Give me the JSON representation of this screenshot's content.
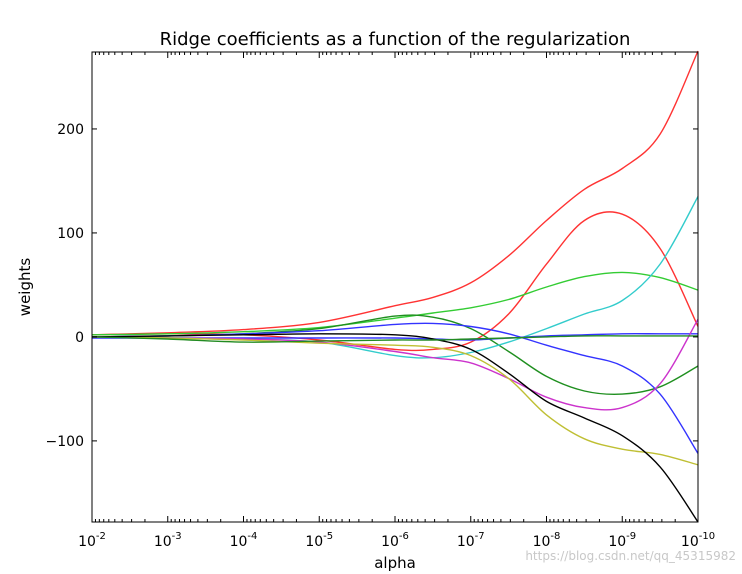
{
  "chart_data": {
    "type": "line",
    "title": "Ridge coefficients as a function of the regularization",
    "xlabel": "alpha",
    "ylabel": "weights",
    "x_scale": "log",
    "x_reversed": true,
    "xlim": [
      0.01,
      1e-10
    ],
    "ylim": [
      -178,
      274
    ],
    "grid": false,
    "legend": "none",
    "x_ticks": [
      {
        "exp": -2,
        "base": "10",
        "sup": "-2"
      },
      {
        "exp": -3,
        "base": "10",
        "sup": "-3"
      },
      {
        "exp": -4,
        "base": "10",
        "sup": "-4"
      },
      {
        "exp": -5,
        "base": "10",
        "sup": "-5"
      },
      {
        "exp": -6,
        "base": "10",
        "sup": "-6"
      },
      {
        "exp": -7,
        "base": "10",
        "sup": "-7"
      },
      {
        "exp": -8,
        "base": "10",
        "sup": "-8"
      },
      {
        "exp": -9,
        "base": "10",
        "sup": "-9"
      },
      {
        "exp": -10,
        "base": "10",
        "sup": "-10"
      }
    ],
    "y_ticks": [
      {
        "value": 200,
        "label": "200"
      },
      {
        "value": 100,
        "label": "100"
      },
      {
        "value": 0,
        "label": "0"
      },
      {
        "value": -100,
        "label": "−100"
      }
    ],
    "series": [
      {
        "color": "#ff3333",
        "points": [
          [
            -2,
            2
          ],
          [
            -3,
            4
          ],
          [
            -4,
            7
          ],
          [
            -5,
            14
          ],
          [
            -6,
            30
          ],
          [
            -6.5,
            38
          ],
          [
            -7,
            52
          ],
          [
            -7.5,
            78
          ],
          [
            -8,
            112
          ],
          [
            -8.5,
            142
          ],
          [
            -9,
            162
          ],
          [
            -9.5,
            195
          ],
          [
            -10,
            275
          ]
        ]
      },
      {
        "color": "#ff3333",
        "points": [
          [
            -2,
            2
          ],
          [
            -3,
            3
          ],
          [
            -4,
            2
          ],
          [
            -5,
            -3
          ],
          [
            -6,
            -12
          ],
          [
            -6.5,
            -12
          ],
          [
            -7,
            -5
          ],
          [
            -7.5,
            22
          ],
          [
            -8,
            70
          ],
          [
            -8.5,
            112
          ],
          [
            -9,
            118
          ],
          [
            -9.5,
            85
          ],
          [
            -10,
            10
          ]
        ]
      },
      {
        "color": "#33cc33",
        "points": [
          [
            -2,
            2
          ],
          [
            -3,
            3
          ],
          [
            -4,
            5
          ],
          [
            -5,
            9
          ],
          [
            -6,
            18
          ],
          [
            -6.5,
            23
          ],
          [
            -7,
            28
          ],
          [
            -7.5,
            36
          ],
          [
            -8,
            48
          ],
          [
            -8.5,
            58
          ],
          [
            -9,
            62
          ],
          [
            -9.5,
            57
          ],
          [
            -10,
            45
          ]
        ]
      },
      {
        "color": "#1f8f1f",
        "points": [
          [
            -2,
            0
          ],
          [
            -3,
            1
          ],
          [
            -4,
            3
          ],
          [
            -5,
            8
          ],
          [
            -6,
            20
          ],
          [
            -6.5,
            19
          ],
          [
            -7,
            8
          ],
          [
            -7.5,
            -14
          ],
          [
            -8,
            -38
          ],
          [
            -8.5,
            -52
          ],
          [
            -9,
            -55
          ],
          [
            -9.5,
            -48
          ],
          [
            -10,
            -28
          ]
        ]
      },
      {
        "color": "#33cccc",
        "points": [
          [
            -2,
            0
          ],
          [
            -3,
            -1
          ],
          [
            -4,
            -2
          ],
          [
            -5,
            -5
          ],
          [
            -6,
            -18
          ],
          [
            -6.5,
            -20
          ],
          [
            -7,
            -15
          ],
          [
            -7.5,
            -5
          ],
          [
            -8,
            8
          ],
          [
            -8.5,
            22
          ],
          [
            -9,
            35
          ],
          [
            -9.5,
            70
          ],
          [
            -10,
            135
          ]
        ]
      },
      {
        "color": "#3333ff",
        "points": [
          [
            -2,
            0
          ],
          [
            -3,
            1
          ],
          [
            -4,
            3
          ],
          [
            -5,
            6
          ],
          [
            -6,
            12
          ],
          [
            -6.5,
            13
          ],
          [
            -7,
            10
          ],
          [
            -7.5,
            3
          ],
          [
            -8,
            -8
          ],
          [
            -8.5,
            -18
          ],
          [
            -9,
            -28
          ],
          [
            -9.5,
            -55
          ],
          [
            -10,
            -112
          ]
        ]
      },
      {
        "color": "#3333ff",
        "points": [
          [
            -2,
            -1
          ],
          [
            -3,
            -1
          ],
          [
            -4,
            -1
          ],
          [
            -5,
            -1
          ],
          [
            -6,
            -1
          ],
          [
            -6.5,
            -2
          ],
          [
            -7,
            -3
          ],
          [
            -7.5,
            -1
          ],
          [
            -8,
            1
          ],
          [
            -8.5,
            2
          ],
          [
            -9,
            3
          ],
          [
            -9.5,
            3
          ],
          [
            -10,
            3
          ]
        ]
      },
      {
        "color": "#cc33cc",
        "points": [
          [
            -2,
            0
          ],
          [
            -3,
            -1
          ],
          [
            -4,
            -2
          ],
          [
            -5,
            -5
          ],
          [
            -6,
            -14
          ],
          [
            -6.5,
            -20
          ],
          [
            -7,
            -25
          ],
          [
            -7.5,
            -40
          ],
          [
            -8,
            -58
          ],
          [
            -8.5,
            -68
          ],
          [
            -9,
            -68
          ],
          [
            -9.5,
            -45
          ],
          [
            -10,
            17
          ]
        ]
      },
      {
        "color": "#bfbf33",
        "points": [
          [
            -2,
            0
          ],
          [
            -3,
            -1
          ],
          [
            -4,
            -3
          ],
          [
            -5,
            -6
          ],
          [
            -6,
            -8
          ],
          [
            -6.5,
            -10
          ],
          [
            -7,
            -18
          ],
          [
            -7.5,
            -40
          ],
          [
            -8,
            -75
          ],
          [
            -8.5,
            -98
          ],
          [
            -9,
            -108
          ],
          [
            -9.5,
            -113
          ],
          [
            -10,
            -123
          ]
        ]
      },
      {
        "color": "#000000",
        "points": [
          [
            -2,
            0
          ],
          [
            -3,
            1
          ],
          [
            -4,
            2
          ],
          [
            -5,
            3
          ],
          [
            -6,
            2
          ],
          [
            -6.5,
            -2
          ],
          [
            -7,
            -12
          ],
          [
            -7.5,
            -35
          ],
          [
            -8,
            -62
          ],
          [
            -8.5,
            -78
          ],
          [
            -9,
            -95
          ],
          [
            -9.5,
            -125
          ],
          [
            -10,
            -178
          ]
        ]
      },
      {
        "color": "#228b22",
        "points": [
          [
            -2,
            0
          ],
          [
            -3,
            -2
          ],
          [
            -4,
            -5
          ],
          [
            -5,
            -4
          ],
          [
            -6,
            -3
          ],
          [
            -6.5,
            -3
          ],
          [
            -7,
            -2
          ],
          [
            -7.5,
            -1
          ],
          [
            -8,
            0
          ],
          [
            -8.5,
            1
          ],
          [
            -9,
            1
          ],
          [
            -9.5,
            1
          ],
          [
            -10,
            1
          ]
        ]
      }
    ],
    "watermark": "https://blog.csdn.net/qq_45315982"
  }
}
